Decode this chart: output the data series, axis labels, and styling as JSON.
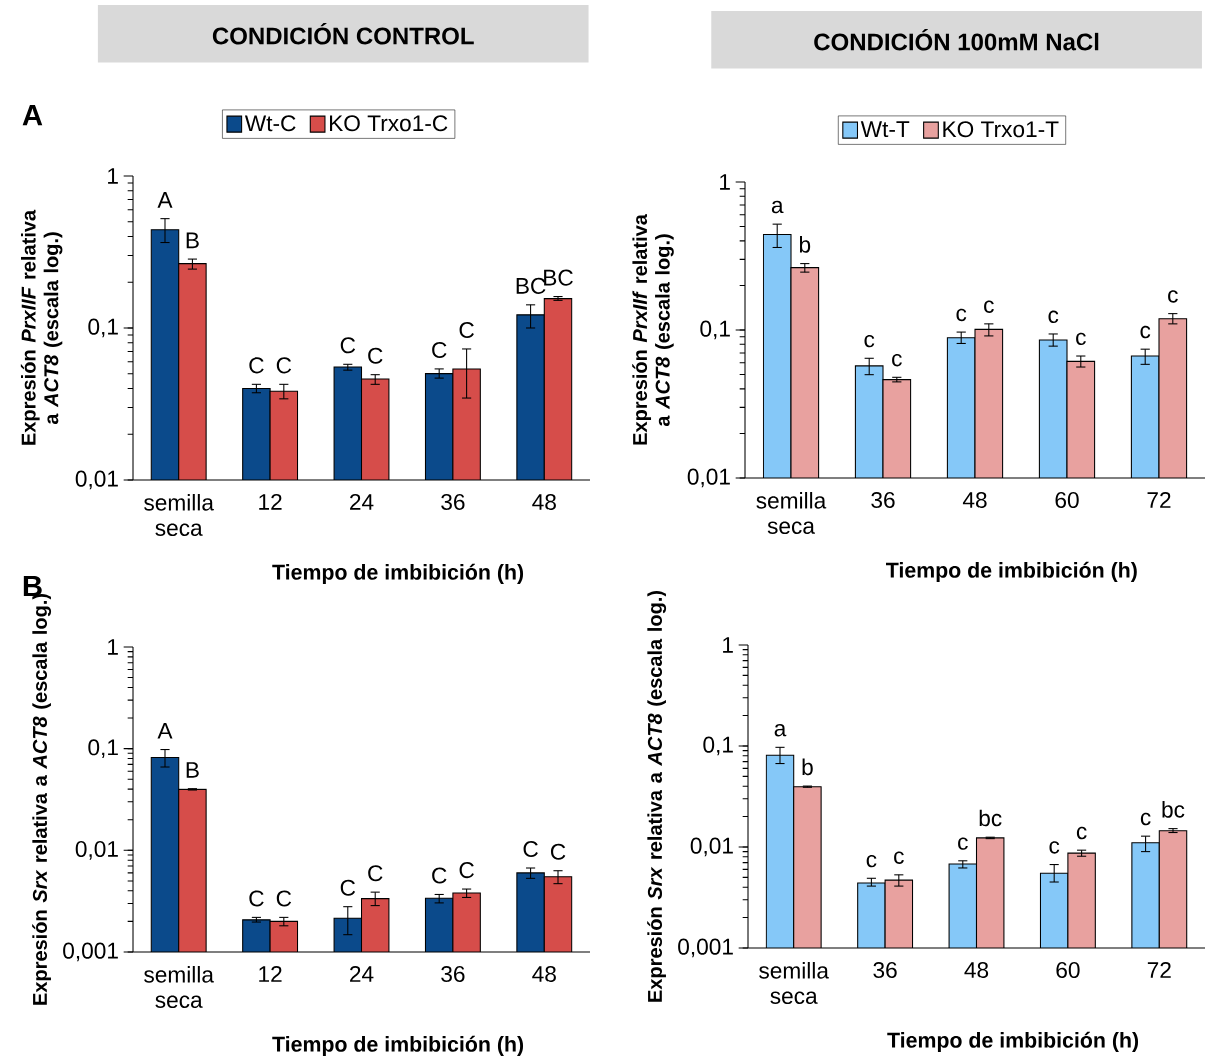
{
  "chart_data": [
    {
      "type": "bar",
      "title": "CONDICIÓN CONTROL",
      "annotations": [
        "A"
      ],
      "categories": [
        "semilla seca",
        "12",
        "24",
        "36",
        "48"
      ],
      "xlabel": "Tiempo de imbibición (h)",
      "ylabel": "Expresión *PrxIIF* relativa a *ACT8* (escala log.)",
      "log": true,
      "ylim": [
        0.01,
        1
      ],
      "yticks": [
        {
          "value": 0.01,
          "label": "0,01"
        },
        {
          "value": 0.1,
          "label": "0,1"
        },
        1
      ],
      "legend": "top",
      "series": [
        {
          "name": "Wt-C",
          "color": "#0b4a8b",
          "values": [
            0.443,
            0.04,
            0.0554,
            0.0501,
            0.122
          ],
          "errors": [
            [
              0.365,
              0.524
            ],
            [
              0.0375,
              0.0426
            ],
            [
              0.0528,
              0.0577
            ],
            [
              0.0468,
              0.0538
            ],
            [
              0.1,
              0.142
            ]
          ],
          "value_labels": [
            "A",
            "C",
            "C",
            "C",
            "BC"
          ]
        },
        {
          "name": "KO Trxo1-C",
          "color": "#d64d4a",
          "values": [
            0.265,
            0.0384,
            0.0462,
            0.0538,
            0.156
          ],
          "errors": [
            [
              0.244,
              0.284
            ],
            [
              0.0342,
              0.0426
            ],
            [
              0.0426,
              0.0493
            ],
            [
              0.0346,
              0.0728
            ],
            [
              0.152,
              0.161
            ]
          ],
          "value_labels": [
            "B",
            "C",
            "C",
            "C",
            "BC"
          ]
        }
      ]
    },
    {
      "type": "bar",
      "title": "CONDICIÓN 100mM NaCl",
      "categories": [
        "semilla seca",
        "36",
        "48",
        "60",
        "72"
      ],
      "xlabel": "Tiempo de imbibición (h)",
      "ylabel": "Expresión *PrxIIf* relativa a *ACT8* (escala log.)",
      "log": true,
      "ylim": [
        0.01,
        1
      ],
      "yticks": [
        {
          "value": 0.01,
          "label": "0,01"
        },
        {
          "value": 0.1,
          "label": "0,1"
        },
        1
      ],
      "legend": "top",
      "series": [
        {
          "name": "Wt-T",
          "color": "#85c8f8",
          "values": [
            0.442,
            0.0572,
            0.0886,
            0.0855,
            0.0667
          ],
          "errors": [
            [
              0.361,
              0.519
            ],
            [
              0.0499,
              0.0644
            ],
            [
              0.0811,
              0.0968
            ],
            [
              0.0778,
              0.094
            ],
            [
              0.0586,
              0.0742
            ]
          ],
          "value_labels": [
            "a",
            "c",
            "c",
            "c",
            "c"
          ]
        },
        {
          "name": "KO Trxo1-T",
          "color": "#e8a19f",
          "values": [
            0.264,
            0.0462,
            0.101,
            0.0614,
            0.119
          ],
          "errors": [
            [
              0.246,
              0.281
            ],
            [
              0.0446,
              0.0479
            ],
            [
              0.0912,
              0.11
            ],
            [
              0.0562,
              0.0667
            ],
            [
              0.11,
              0.129
            ]
          ],
          "value_labels": [
            "b",
            "c",
            "c",
            "c",
            "c"
          ]
        }
      ]
    },
    {
      "type": "bar",
      "annotations": [
        "B"
      ],
      "categories": [
        "semilla seca",
        "12",
        "24",
        "36",
        "48"
      ],
      "xlabel": "Tiempo de imbibición (h)",
      "ylabel": "Expresión *Srx* relativa a *ACT8* (escala log.)",
      "log": true,
      "ylim": [
        0.001,
        1
      ],
      "yticks": [
        {
          "value": 0.001,
          "label": "0,001"
        },
        {
          "value": 0.01,
          "label": "0,01"
        },
        {
          "value": 0.1,
          "label": "0,1"
        },
        1
      ],
      "series": [
        {
          "color": "#0b4a8b",
          "values": [
            0.082,
            0.00207,
            0.00215,
            0.00338,
            0.006
          ],
          "errors": [
            [
              0.066,
              0.098
            ],
            [
              0.00197,
              0.00219
            ],
            [
              0.00148,
              0.00279
            ],
            [
              0.00304,
              0.00368
            ],
            [
              0.0053,
              0.0067
            ]
          ],
          "value_labels": [
            "A",
            "C",
            "C",
            "C",
            "C"
          ]
        },
        {
          "color": "#d64d4a",
          "values": [
            0.0398,
            0.002,
            0.00335,
            0.00381,
            0.0055
          ],
          "errors": [
            [
              0.0392,
              0.0404
            ],
            [
              0.00181,
              0.00219
            ],
            [
              0.00286,
              0.00388
            ],
            [
              0.00344,
              0.00416
            ],
            [
              0.0047,
              0.0063
            ]
          ],
          "value_labels": [
            "B",
            "C",
            "C",
            "C",
            "C"
          ]
        }
      ]
    },
    {
      "type": "bar",
      "categories": [
        "semilla seca",
        "36",
        "48",
        "60",
        "72"
      ],
      "xlabel": "Tiempo de imbibición (h)",
      "ylabel": "Expresión *Srx* relativa a *ACT8* (escala log.)",
      "log": true,
      "ylim": [
        0.001,
        1
      ],
      "yticks": [
        {
          "value": 0.001,
          "label": "0,001"
        },
        {
          "value": 0.01,
          "label": "0,01"
        },
        {
          "value": 0.1,
          "label": "0,1"
        },
        1
      ],
      "series": [
        {
          "color": "#85c8f8",
          "values": [
            0.081,
            0.0044,
            0.0068,
            0.0055,
            0.011
          ],
          "errors": [
            [
              0.067,
              0.097
            ],
            [
              0.0041,
              0.0049
            ],
            [
              0.0062,
              0.0073
            ],
            [
              0.0045,
              0.0067
            ],
            [
              0.009,
              0.0128
            ]
          ],
          "value_labels": [
            "a",
            "c",
            "c",
            "c",
            "c"
          ]
        },
        {
          "color": "#e8a19f",
          "values": [
            0.0395,
            0.0047,
            0.0123,
            0.0087,
            0.0145
          ],
          "errors": [
            [
              0.039,
              0.0401
            ],
            [
              0.0041,
              0.0053
            ],
            [
              0.0121,
              0.0125
            ],
            [
              0.0081,
              0.0093
            ],
            [
              0.0139,
              0.0152
            ]
          ],
          "value_labels": [
            "b",
            "c",
            "bc",
            "c",
            "bc"
          ]
        }
      ]
    }
  ]
}
